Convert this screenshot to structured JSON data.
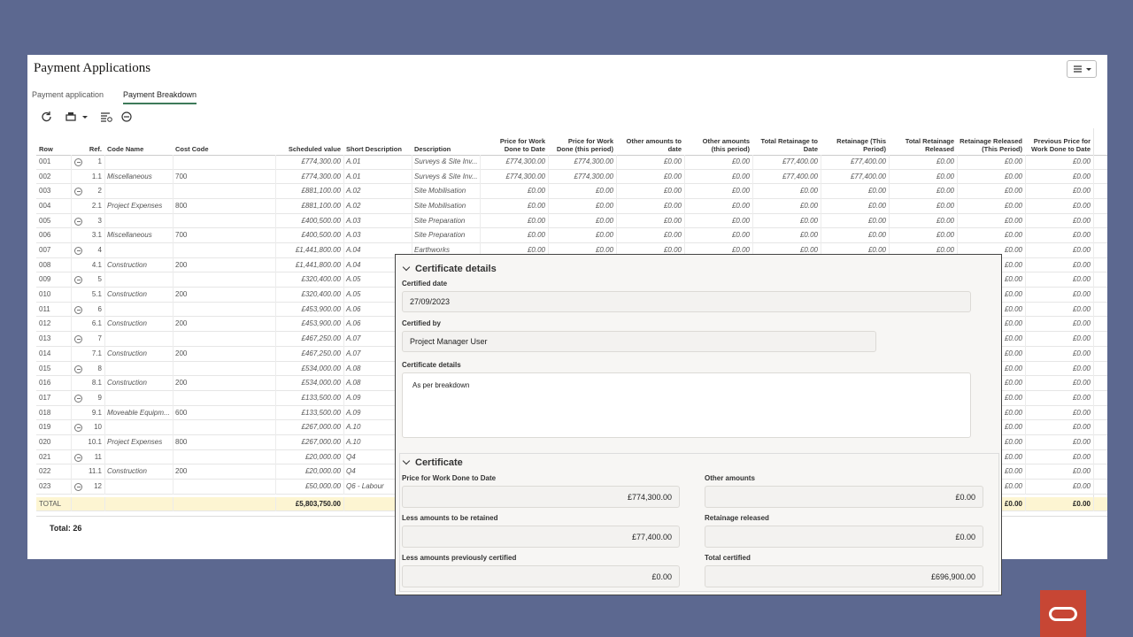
{
  "header": {
    "title": "Payment Applications"
  },
  "tabs": [
    "Payment application",
    "Payment Breakdown"
  ],
  "table": {
    "columns": [
      "Row",
      "Ref.",
      "Code Name",
      "Cost Code",
      "Scheduled value",
      "Short Description",
      "Description",
      "Price for Work Done to Date",
      "Price for Work Done (this period)",
      "Other amounts to date",
      "Other amounts (this period)",
      "Total Retainage to Date",
      "Retainage (This Period)",
      "Total Retainage Released",
      "Retainage Released (This Period)",
      "Previous Price for Work Done to Date"
    ],
    "rows": [
      [
        "001",
        "1",
        null,
        null,
        "£774,300.00",
        "A.01",
        "Surveys & Site Inv...",
        "£774,300.00",
        "£774,300.00",
        "£0.00",
        "£0.00",
        "£77,400.00",
        "£77,400.00",
        "£0.00",
        "£0.00",
        "£0.00"
      ],
      [
        "002",
        "1.1",
        "Miscellaneous",
        "700",
        "£774,300.00",
        "A.01",
        "Surveys & Site Inv...",
        "£774,300.00",
        "£774,300.00",
        "£0.00",
        "£0.00",
        "£77,400.00",
        "£77,400.00",
        "£0.00",
        "£0.00",
        "£0.00"
      ],
      [
        "003",
        "2",
        null,
        null,
        "£881,100.00",
        "A.02",
        "Site Mobilisation",
        "£0.00",
        "£0.00",
        "£0.00",
        "£0.00",
        "£0.00",
        "£0.00",
        "£0.00",
        "£0.00",
        "£0.00"
      ],
      [
        "004",
        "2.1",
        "Project Expenses",
        "800",
        "£881,100.00",
        "A.02",
        "Site Mobilisation",
        "£0.00",
        "£0.00",
        "£0.00",
        "£0.00",
        "£0.00",
        "£0.00",
        "£0.00",
        "£0.00",
        "£0.00"
      ],
      [
        "005",
        "3",
        null,
        null,
        "£400,500.00",
        "A.03",
        "Site Preparation",
        "£0.00",
        "£0.00",
        "£0.00",
        "£0.00",
        "£0.00",
        "£0.00",
        "£0.00",
        "£0.00",
        "£0.00"
      ],
      [
        "006",
        "3.1",
        "Miscellaneous",
        "700",
        "£400,500.00",
        "A.03",
        "Site Preparation",
        "£0.00",
        "£0.00",
        "£0.00",
        "£0.00",
        "£0.00",
        "£0.00",
        "£0.00",
        "£0.00",
        "£0.00"
      ],
      [
        "007",
        "4",
        null,
        null,
        "£1,441,800.00",
        "A.04",
        "Earthworks",
        "£0.00",
        "£0.00",
        "£0.00",
        "£0.00",
        "£0.00",
        "£0.00",
        "£0.00",
        "£0.00",
        "£0.00"
      ],
      [
        "008",
        "4.1",
        "Construction",
        "200",
        "£1,441,800.00",
        "A.04",
        null,
        null,
        null,
        null,
        null,
        null,
        null,
        null,
        "£0.00",
        "£0.00"
      ],
      [
        "009",
        "5",
        null,
        null,
        "£320,400.00",
        "A.05",
        null,
        null,
        null,
        null,
        null,
        null,
        null,
        null,
        "£0.00",
        "£0.00"
      ],
      [
        "010",
        "5.1",
        "Construction",
        "200",
        "£320,400.00",
        "A.05",
        null,
        null,
        null,
        null,
        null,
        null,
        null,
        null,
        "£0.00",
        "£0.00"
      ],
      [
        "011",
        "6",
        null,
        null,
        "£453,900.00",
        "A.06",
        null,
        null,
        null,
        null,
        null,
        null,
        null,
        null,
        "£0.00",
        "£0.00"
      ],
      [
        "012",
        "6.1",
        "Construction",
        "200",
        "£453,900.00",
        "A.06",
        null,
        null,
        null,
        null,
        null,
        null,
        null,
        null,
        "£0.00",
        "£0.00"
      ],
      [
        "013",
        "7",
        null,
        null,
        "£467,250.00",
        "A.07",
        null,
        null,
        null,
        null,
        null,
        null,
        null,
        null,
        "£0.00",
        "£0.00"
      ],
      [
        "014",
        "7.1",
        "Construction",
        "200",
        "£467,250.00",
        "A.07",
        null,
        null,
        null,
        null,
        null,
        null,
        null,
        null,
        "£0.00",
        "£0.00"
      ],
      [
        "015",
        "8",
        null,
        null,
        "£534,000.00",
        "A.08",
        null,
        null,
        null,
        null,
        null,
        null,
        null,
        null,
        "£0.00",
        "£0.00"
      ],
      [
        "016",
        "8.1",
        "Construction",
        "200",
        "£534,000.00",
        "A.08",
        null,
        null,
        null,
        null,
        null,
        null,
        null,
        null,
        "£0.00",
        "£0.00"
      ],
      [
        "017",
        "9",
        null,
        null,
        "£133,500.00",
        "A.09",
        null,
        null,
        null,
        null,
        null,
        null,
        null,
        null,
        "£0.00",
        "£0.00"
      ],
      [
        "018",
        "9.1",
        "Moveable Equipm...",
        "600",
        "£133,500.00",
        "A.09",
        null,
        null,
        null,
        null,
        null,
        null,
        null,
        null,
        "£0.00",
        "£0.00"
      ],
      [
        "019",
        "10",
        null,
        null,
        "£267,000.00",
        "A.10",
        null,
        null,
        null,
        null,
        null,
        null,
        null,
        null,
        "£0.00",
        "£0.00"
      ],
      [
        "020",
        "10.1",
        "Project Expenses",
        "800",
        "£267,000.00",
        "A.10",
        null,
        null,
        null,
        null,
        null,
        null,
        null,
        null,
        "£0.00",
        "£0.00"
      ],
      [
        "021",
        "11",
        null,
        null,
        "£20,000.00",
        "Q4",
        null,
        null,
        null,
        null,
        null,
        null,
        null,
        null,
        "£0.00",
        "£0.00"
      ],
      [
        "022",
        "11.1",
        "Construction",
        "200",
        "£20,000.00",
        "Q4",
        null,
        null,
        null,
        null,
        null,
        null,
        null,
        null,
        "£0.00",
        "£0.00"
      ],
      [
        "023",
        "12",
        null,
        null,
        "£50,000.00",
        "Q6 - Labour",
        null,
        null,
        null,
        null,
        null,
        null,
        null,
        null,
        "£0.00",
        "£0.00"
      ]
    ],
    "total_row": [
      "TOTAL",
      null,
      null,
      null,
      "£5,803,750.00",
      null,
      null,
      null,
      null,
      null,
      null,
      null,
      null,
      null,
      "£0.00",
      "£0.00"
    ]
  },
  "footer": "Total: 26",
  "dialog": {
    "sections": [
      {
        "title": "Certificate details",
        "fields": [
          {
            "label": "Certified date",
            "value": "27/09/2023"
          },
          {
            "label": "Certified by",
            "value": "Project Manager User"
          },
          {
            "label": "Certificate details",
            "value": "As per breakdown"
          }
        ]
      },
      {
        "title": "Certificate",
        "fields": [
          {
            "label": "Price for Work Done to Date",
            "value": "£774,300.00"
          },
          {
            "label": "Other amounts",
            "value": "£0.00"
          },
          {
            "label": "Less amounts to be retained",
            "value": "£77,400.00"
          },
          {
            "label": "Retainage released",
            "value": "£0.00"
          },
          {
            "label": "Less amounts previously certified",
            "value": "£0.00"
          },
          {
            "label": "Total certified",
            "value": "£696,900.00"
          }
        ]
      }
    ]
  }
}
